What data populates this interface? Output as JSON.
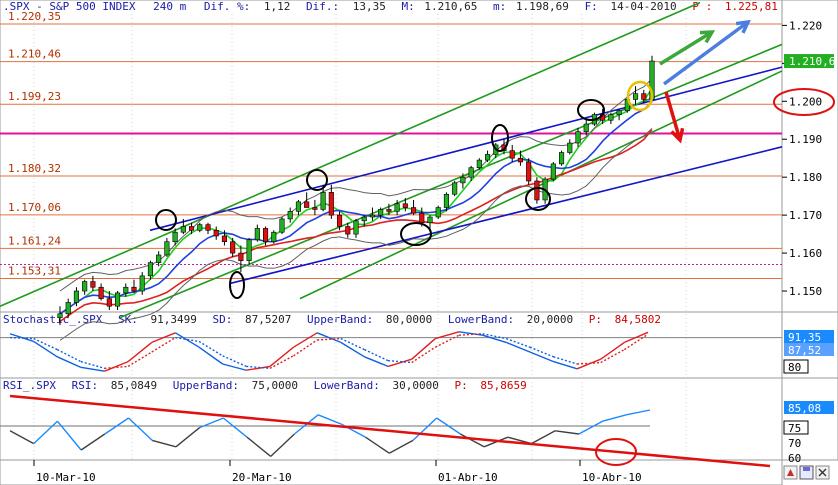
{
  "header": {
    "symbol": ".SPX - S&P 500 INDEX",
    "interval": "240 m",
    "dif_pct_label": "Dif. %:",
    "dif_pct_value": "1,12",
    "dif_label": "Dif.:",
    "dif_value": "13,35",
    "max_label": "M:",
    "max_value": "1.210,65",
    "min_label": "m:",
    "min_value": "1.198,69",
    "date_label": "F:",
    "date_value": "14-04-2010",
    "p_label": "P :",
    "p_value": "1.225,81"
  },
  "stochastic_header": {
    "name": "Stochastic_.SPX",
    "sk_label": "SK:",
    "sk_value": "91,3499",
    "sd_label": "SD:",
    "sd_value": "87,5207",
    "upper_label": "UpperBand:",
    "upper_value": "80,0000",
    "lower_label": "LowerBand:",
    "lower_value": "20,0000",
    "p_label": "P:",
    "p_value": "84,5802"
  },
  "rsi_header": {
    "name": "RSI_.SPX",
    "rsi_label": "RSI:",
    "rsi_value": "85,0849",
    "upper_label": "UpperBand:",
    "upper_value": "75,0000",
    "lower_label": "LowerBand:",
    "lower_value": "30,0000",
    "p_label": "P:",
    "p_value": "85,8659"
  },
  "level_labels": [
    "1.220,35",
    "1.210,46",
    "1.199,23",
    "1.180,32",
    "1.170,06",
    "1.161,24",
    "1.153,31"
  ],
  "last_price_badge": "1.210,6",
  "stoch_badges": [
    "91,35",
    "87,52"
  ],
  "stoch_level_badge": "80",
  "rsi_badges": [
    "85,08",
    "75"
  ],
  "rsi_extra_ticks": [
    "70",
    "60"
  ],
  "colors": {
    "bull_candle": "#22b022",
    "bear_candle": "#e01010",
    "channel_green": "#1f9a1f",
    "channel_blue": "#1414c8",
    "level_line": "#e07040",
    "magenta_line": "#e0109a",
    "annotation_red": "#e01010",
    "arrow_green": "#3aa83a",
    "arrow_blue": "#4a7fe0"
  },
  "chart_data": [
    {
      "type": "candlestick",
      "title": ".SPX - S&P 500 INDEX 240 m",
      "ylim": [
        1145,
        1223
      ],
      "y_ticks": [
        1150,
        1160,
        1170,
        1180,
        1190,
        1200,
        1210,
        1220
      ],
      "y_tick_labels": [
        "1.150",
        "1.160",
        "1.170",
        "1.180",
        "1.190",
        "1.200",
        "1.210",
        "1.220"
      ],
      "x_tick_labels": [
        "10-Mar-10",
        "20-Mar-10",
        "01-Abr-10",
        "10-Abr-10"
      ],
      "horizontal_levels": [
        1220.35,
        1210.46,
        1199.23,
        1180.32,
        1170.06,
        1161.24,
        1153.31
      ],
      "candles": [
        [
          1143.0,
          1146.0,
          1141.0,
          1144.0
        ],
        [
          1144.0,
          1148.0,
          1143.0,
          1147.0
        ],
        [
          1147.0,
          1151.0,
          1146.0,
          1150.0
        ],
        [
          1150.0,
          1153.0,
          1149.0,
          1152.5
        ],
        [
          1152.5,
          1154.0,
          1150.0,
          1151.0
        ],
        [
          1151.0,
          1152.0,
          1147.5,
          1148.0
        ],
        [
          1148.0,
          1150.0,
          1145.0,
          1146.0
        ],
        [
          1146.0,
          1150.0,
          1145.0,
          1149.5
        ],
        [
          1149.5,
          1152.0,
          1148.5,
          1151.0
        ],
        [
          1151.0,
          1153.0,
          1149.5,
          1150.0
        ],
        [
          1150.0,
          1155.0,
          1149.0,
          1154.0
        ],
        [
          1154.0,
          1158.0,
          1153.0,
          1157.5
        ],
        [
          1157.5,
          1160.5,
          1156.5,
          1159.5
        ],
        [
          1159.5,
          1164.0,
          1159.0,
          1163.0
        ],
        [
          1163.0,
          1166.5,
          1162.0,
          1165.5
        ],
        [
          1165.5,
          1169.0,
          1165.0,
          1167.0
        ],
        [
          1167.0,
          1168.0,
          1165.0,
          1166.0
        ],
        [
          1166.0,
          1168.0,
          1165.5,
          1167.5
        ],
        [
          1167.5,
          1168.0,
          1165.0,
          1166.0
        ],
        [
          1166.0,
          1167.0,
          1163.5,
          1164.5
        ],
        [
          1164.5,
          1166.0,
          1162.0,
          1163.0
        ],
        [
          1163.0,
          1164.0,
          1159.0,
          1160.0
        ],
        [
          1160.0,
          1162.0,
          1155.0,
          1158.0
        ],
        [
          1158.0,
          1164.0,
          1157.0,
          1163.5
        ],
        [
          1163.5,
          1167.5,
          1163.0,
          1166.5
        ],
        [
          1166.5,
          1167.0,
          1162.0,
          1163.0
        ],
        [
          1163.0,
          1166.0,
          1162.5,
          1165.5
        ],
        [
          1165.5,
          1169.5,
          1165.0,
          1169.0
        ],
        [
          1169.0,
          1172.0,
          1168.0,
          1171.0
        ],
        [
          1171.0,
          1174.0,
          1170.0,
          1173.5
        ],
        [
          1173.5,
          1176.0,
          1172.5,
          1172.0
        ],
        [
          1172.0,
          1174.0,
          1170.0,
          1171.5
        ],
        [
          1171.5,
          1178.0,
          1171.0,
          1176.0
        ],
        [
          1176.0,
          1178.0,
          1169.0,
          1170.0
        ],
        [
          1170.0,
          1171.0,
          1166.0,
          1167.0
        ],
        [
          1167.0,
          1168.0,
          1164.0,
          1165.0
        ],
        [
          1165.0,
          1169.0,
          1164.0,
          1168.5
        ],
        [
          1168.5,
          1170.0,
          1167.0,
          1169.5
        ],
        [
          1169.5,
          1172.0,
          1168.5,
          1170.0
        ],
        [
          1170.0,
          1172.0,
          1169.0,
          1171.5
        ],
        [
          1171.5,
          1173.0,
          1170.0,
          1171.0
        ],
        [
          1171.0,
          1174.0,
          1170.0,
          1173.0
        ],
        [
          1173.0,
          1174.5,
          1171.0,
          1172.0
        ],
        [
          1172.0,
          1174.0,
          1170.0,
          1170.5
        ],
        [
          1170.5,
          1172.0,
          1167.0,
          1168.0
        ],
        [
          1168.0,
          1170.0,
          1166.0,
          1169.5
        ],
        [
          1169.5,
          1172.5,
          1169.0,
          1172.0
        ],
        [
          1172.0,
          1176.0,
          1171.0,
          1175.5
        ],
        [
          1175.5,
          1179.0,
          1175.0,
          1178.5
        ],
        [
          1178.5,
          1181.0,
          1177.0,
          1180.0
        ],
        [
          1180.0,
          1183.0,
          1179.0,
          1182.5
        ],
        [
          1182.5,
          1185.0,
          1182.0,
          1184.5
        ],
        [
          1184.5,
          1187.0,
          1184.0,
          1186.0
        ],
        [
          1186.0,
          1189.0,
          1185.0,
          1188.5
        ],
        [
          1188.5,
          1190.0,
          1186.0,
          1187.0
        ],
        [
          1187.0,
          1188.5,
          1184.0,
          1185.0
        ],
        [
          1185.0,
          1187.0,
          1183.0,
          1184.0
        ],
        [
          1184.0,
          1185.0,
          1178.0,
          1179.0
        ],
        [
          1179.0,
          1180.0,
          1173.0,
          1174.0
        ],
        [
          1174.0,
          1180.0,
          1173.0,
          1179.5
        ],
        [
          1179.5,
          1184.0,
          1179.0,
          1183.5
        ],
        [
          1183.5,
          1187.0,
          1183.0,
          1186.5
        ],
        [
          1186.5,
          1190.0,
          1186.0,
          1189.0
        ],
        [
          1189.0,
          1193.0,
          1188.0,
          1192.0
        ],
        [
          1192.0,
          1195.0,
          1191.0,
          1194.0
        ],
        [
          1194.0,
          1197.0,
          1193.5,
          1196.5
        ],
        [
          1196.5,
          1198.0,
          1194.0,
          1195.0
        ],
        [
          1195.0,
          1197.0,
          1194.0,
          1196.5
        ],
        [
          1196.5,
          1198.0,
          1195.0,
          1197.5
        ],
        [
          1197.5,
          1201.0,
          1197.0,
          1200.5
        ],
        [
          1200.5,
          1204.0,
          1199.0,
          1202.0
        ],
        [
          1202.0,
          1203.0,
          1199.5,
          1200.5
        ],
        [
          1200.5,
          1212.0,
          1200.0,
          1210.6
        ]
      ]
    },
    {
      "type": "line",
      "title": "Stochastic_.SPX",
      "ylim": [
        0,
        100
      ],
      "series": [
        {
          "name": "SK",
          "values": [
            88,
            72,
            40,
            18,
            10,
            30,
            70,
            90,
            60,
            25,
            12,
            20,
            60,
            90,
            70,
            40,
            20,
            35,
            78,
            92,
            85,
            70,
            50,
            30,
            15,
            35,
            70,
            91
          ]
        },
        {
          "name": "SD",
          "values": [
            80,
            78,
            55,
            30,
            16,
            20,
            50,
            80,
            72,
            42,
            20,
            16,
            42,
            75,
            78,
            55,
            32,
            28,
            60,
            85,
            88,
            78,
            60,
            40,
            25,
            28,
            55,
            87
          ]
        }
      ],
      "bands": [
        80,
        20
      ]
    },
    {
      "type": "line",
      "title": "RSI_.SPX",
      "ylim": [
        55,
        95
      ],
      "series": [
        {
          "name": "RSI",
          "values": [
            72,
            64,
            78,
            60,
            70,
            80,
            66,
            62,
            74,
            80,
            68,
            56,
            70,
            82,
            76,
            68,
            58,
            66,
            80,
            70,
            62,
            68,
            64,
            72,
            70,
            78,
            82,
            85
          ]
        }
      ],
      "bands": [
        75,
        30
      ]
    }
  ]
}
